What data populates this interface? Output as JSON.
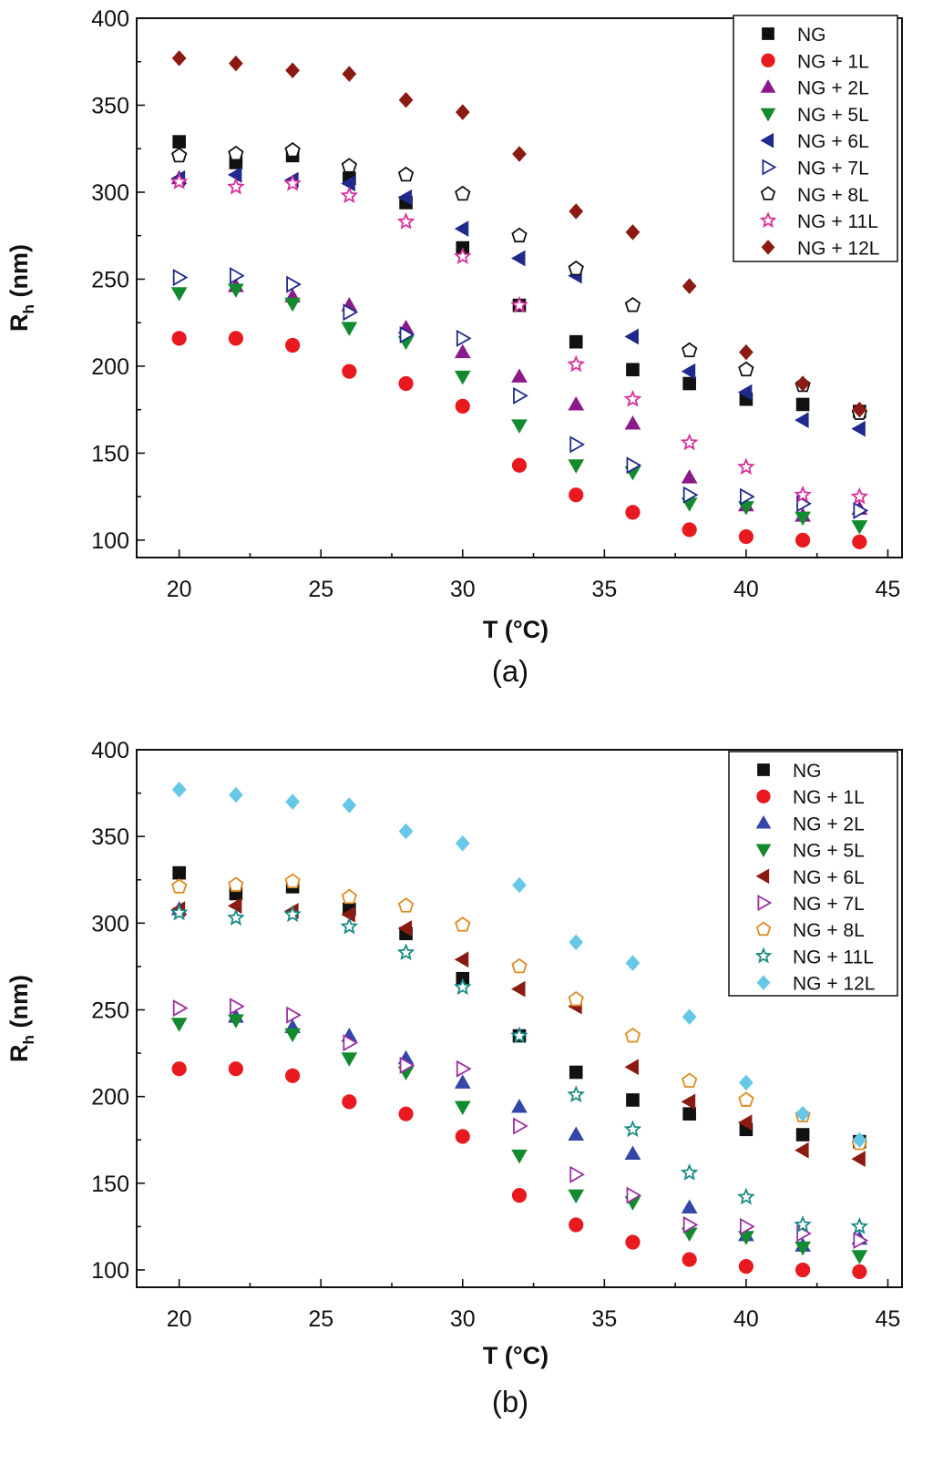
{
  "chart_data": [
    {
      "type": "scatter",
      "panel_label": "(a)",
      "xlabel": "T (°C)",
      "ylabel": "R",
      "ylabel_sub": "h",
      "ylabel_unit": " (nm)",
      "xlim": [
        18.5,
        45.5
      ],
      "ylim": [
        90,
        400
      ],
      "xticks": [
        20,
        25,
        30,
        35,
        40,
        45
      ],
      "yticks": [
        100,
        150,
        200,
        250,
        300,
        350,
        400
      ],
      "legend_position": "top-right",
      "x": [
        20,
        22,
        24,
        26,
        28,
        30,
        32,
        34,
        36,
        38,
        40,
        42,
        44
      ],
      "series": [
        {
          "name": "NG",
          "marker": "square",
          "color": "#111111",
          "fill": true,
          "values": [
            329,
            317,
            321,
            308,
            294,
            268,
            235,
            214,
            198,
            190,
            181,
            178,
            174
          ]
        },
        {
          "name": "NG + 1L",
          "marker": "circle",
          "color": "#e8191f",
          "fill": true,
          "values": [
            216,
            216,
            212,
            197,
            190,
            177,
            143,
            126,
            116,
            106,
            102,
            100,
            99
          ]
        },
        {
          "name": "NG + 2L",
          "marker": "triangle-up",
          "color": "#8b1a8b",
          "fill": true,
          "values": [
            308,
            246,
            240,
            235,
            222,
            208,
            194,
            178,
            167,
            136,
            120,
            114,
            118
          ]
        },
        {
          "name": "NG + 5L",
          "marker": "triangle-down",
          "color": "#138a2e",
          "fill": true,
          "values": [
            242,
            244,
            236,
            222,
            214,
            194,
            166,
            143,
            139,
            121,
            119,
            113,
            108
          ]
        },
        {
          "name": "NG + 6L",
          "marker": "triangle-left",
          "color": "#1f2a8c",
          "fill": true,
          "values": [
            308,
            310,
            307,
            305,
            297,
            279,
            262,
            252,
            217,
            197,
            185,
            169,
            164
          ]
        },
        {
          "name": "NG + 7L",
          "marker": "triangle-right",
          "color": "#1f2a8c",
          "fill": false,
          "values": [
            251,
            252,
            247,
            231,
            218,
            216,
            183,
            155,
            143,
            126,
            125,
            121,
            117
          ]
        },
        {
          "name": "NG + 8L",
          "marker": "pentagon",
          "color": "#111111",
          "fill": false,
          "values": [
            321,
            322,
            324,
            315,
            310,
            299,
            275,
            256,
            235,
            209,
            198,
            189,
            173
          ]
        },
        {
          "name": "NG + 11L",
          "marker": "star",
          "color": "#d6309c",
          "fill": false,
          "values": [
            306,
            303,
            305,
            298,
            283,
            263,
            235,
            201,
            181,
            156,
            142,
            126,
            125
          ]
        },
        {
          "name": "NG + 12L",
          "marker": "diamond",
          "color": "#8b1a12",
          "fill": true,
          "values": [
            377,
            374,
            370,
            368,
            353,
            346,
            322,
            289,
            277,
            246,
            208,
            190,
            175
          ]
        }
      ]
    },
    {
      "type": "scatter",
      "panel_label": "(b)",
      "xlabel": "T (°C)",
      "ylabel": "R",
      "ylabel_sub": "h",
      "ylabel_unit": " (nm)",
      "xlim": [
        18.5,
        45.5
      ],
      "ylim": [
        90,
        400
      ],
      "xticks": [
        20,
        25,
        30,
        35,
        40,
        45
      ],
      "yticks": [
        100,
        150,
        200,
        250,
        300,
        350,
        400
      ],
      "legend_position": "top-right",
      "x": [
        20,
        22,
        24,
        26,
        28,
        30,
        32,
        34,
        36,
        38,
        40,
        42,
        44
      ],
      "series": [
        {
          "name": "NG",
          "marker": "square",
          "color": "#111111",
          "fill": true,
          "values": [
            329,
            317,
            321,
            308,
            294,
            268,
            235,
            214,
            198,
            190,
            181,
            178,
            174
          ]
        },
        {
          "name": "NG + 1L",
          "marker": "circle",
          "color": "#e8191f",
          "fill": true,
          "values": [
            216,
            216,
            212,
            197,
            190,
            177,
            143,
            126,
            116,
            106,
            102,
            100,
            99
          ]
        },
        {
          "name": "NG + 2L",
          "marker": "triangle-up",
          "color": "#3446a8",
          "fill": true,
          "values": [
            308,
            246,
            240,
            235,
            222,
            208,
            194,
            178,
            167,
            136,
            120,
            114,
            118
          ]
        },
        {
          "name": "NG + 5L",
          "marker": "triangle-down",
          "color": "#138a2e",
          "fill": true,
          "values": [
            242,
            244,
            236,
            222,
            214,
            194,
            166,
            143,
            139,
            121,
            119,
            113,
            108
          ]
        },
        {
          "name": "NG + 6L",
          "marker": "triangle-left",
          "color": "#8b1a12",
          "fill": true,
          "values": [
            308,
            310,
            307,
            305,
            297,
            279,
            262,
            252,
            217,
            197,
            185,
            169,
            164
          ]
        },
        {
          "name": "NG + 7L",
          "marker": "triangle-right",
          "color": "#9a2fa0",
          "fill": false,
          "values": [
            251,
            252,
            247,
            231,
            218,
            216,
            183,
            155,
            143,
            126,
            125,
            121,
            117
          ]
        },
        {
          "name": "NG + 8L",
          "marker": "pentagon",
          "color": "#e08a1e",
          "fill": false,
          "values": [
            321,
            322,
            324,
            315,
            310,
            299,
            275,
            256,
            235,
            209,
            198,
            189,
            173
          ]
        },
        {
          "name": "NG + 11L",
          "marker": "star",
          "color": "#1a8a86",
          "fill": false,
          "values": [
            306,
            303,
            305,
            298,
            283,
            263,
            235,
            201,
            181,
            156,
            142,
            126,
            125
          ]
        },
        {
          "name": "NG + 12L",
          "marker": "diamond",
          "color": "#66c8e6",
          "fill": true,
          "values": [
            377,
            374,
            370,
            368,
            353,
            346,
            322,
            289,
            277,
            246,
            208,
            190,
            175
          ]
        }
      ]
    }
  ]
}
